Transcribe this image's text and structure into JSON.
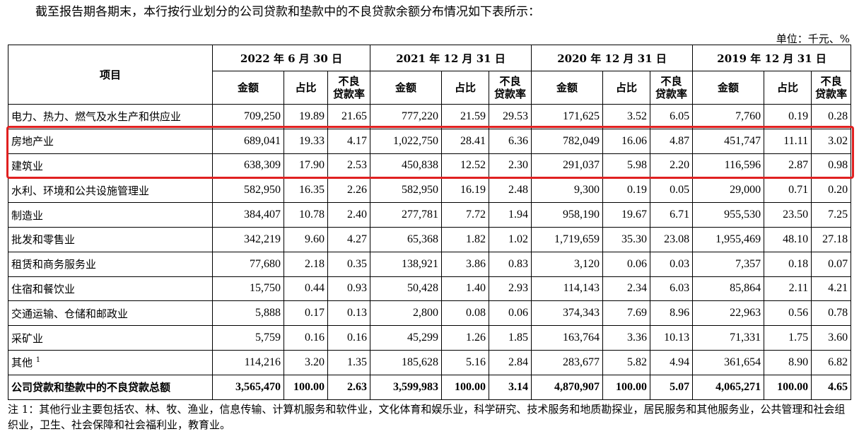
{
  "intro": "截至报告期各期末，本行按行业划分的公司贷款和垫款中的不良贷款余额分布情况如下表所示：",
  "unit": "单位：千元、%",
  "table": {
    "item_header": "项目",
    "periods": [
      "2022 年 6 月 30 日",
      "2021 年 12 月 31 日",
      "2020 年 12 月 31 日",
      "2019 年 12 月 31 日"
    ],
    "sub_headers": {
      "amount": "金额",
      "share": "占比",
      "npl_rate_1": "不良",
      "npl_rate_2": "贷款率"
    },
    "rows": [
      {
        "name": "电力、热力、燃气及水生产和供应业",
        "v": [
          "709,250",
          "19.89",
          "21.65",
          "777,220",
          "21.59",
          "29.53",
          "171,625",
          "3.52",
          "6.05",
          "7,760",
          "0.19",
          "0.28"
        ]
      },
      {
        "name": "房地产业",
        "v": [
          "689,041",
          "19.33",
          "4.17",
          "1,022,750",
          "28.41",
          "6.36",
          "782,049",
          "16.06",
          "4.87",
          "451,747",
          "11.11",
          "3.02"
        ]
      },
      {
        "name": "建筑业",
        "v": [
          "638,309",
          "17.90",
          "2.53",
          "450,838",
          "12.52",
          "2.30",
          "291,037",
          "5.98",
          "2.20",
          "116,596",
          "2.87",
          "0.98"
        ]
      },
      {
        "name": "水利、环境和公共设施管理业",
        "v": [
          "582,950",
          "16.35",
          "2.26",
          "582,950",
          "16.19",
          "2.48",
          "9,300",
          "0.19",
          "0.05",
          "29,000",
          "0.71",
          "0.20"
        ]
      },
      {
        "name": "制造业",
        "v": [
          "384,407",
          "10.78",
          "2.40",
          "277,781",
          "7.72",
          "1.94",
          "958,190",
          "19.67",
          "6.71",
          "955,530",
          "23.50",
          "7.25"
        ]
      },
      {
        "name": "批发和零售业",
        "v": [
          "342,219",
          "9.60",
          "4.27",
          "65,368",
          "1.82",
          "1.02",
          "1,719,659",
          "35.30",
          "23.08",
          "1,955,469",
          "48.10",
          "27.18"
        ]
      },
      {
        "name": "租赁和商务服务业",
        "v": [
          "77,680",
          "2.18",
          "0.35",
          "138,921",
          "3.86",
          "0.83",
          "3,120",
          "0.06",
          "0.03",
          "7,357",
          "0.18",
          "0.07"
        ]
      },
      {
        "name": "住宿和餐饮业",
        "v": [
          "15,750",
          "0.44",
          "0.93",
          "50,428",
          "1.40",
          "2.93",
          "114,143",
          "2.34",
          "6.03",
          "85,864",
          "2.11",
          "4.21"
        ]
      },
      {
        "name": "交通运输、仓储和邮政业",
        "v": [
          "5,888",
          "0.17",
          "0.13",
          "2,800",
          "0.08",
          "0.06",
          "374,343",
          "7.69",
          "8.96",
          "22,963",
          "0.56",
          "0.78"
        ]
      },
      {
        "name": "采矿业",
        "v": [
          "5,759",
          "0.16",
          "0.16",
          "45,299",
          "1.26",
          "1.85",
          "163,764",
          "3.36",
          "10.13",
          "71,331",
          "1.75",
          "3.60"
        ]
      },
      {
        "name": "其他",
        "sup": "1",
        "v": [
          "114,216",
          "3.20",
          "1.35",
          "185,628",
          "5.16",
          "2.84",
          "283,677",
          "5.82",
          "4.94",
          "361,654",
          "8.90",
          "6.82"
        ]
      }
    ],
    "total": {
      "name": "公司贷款和垫款中的不良贷款总额",
      "v": [
        "3,565,470",
        "100.00",
        "2.63",
        "3,599,983",
        "100.00",
        "3.14",
        "4,870,907",
        "100.00",
        "5.07",
        "4,065,271",
        "100.00",
        "4.65"
      ]
    }
  },
  "note": "注 1：其他行业主要包括农、林、牧、渔业，信息传输、计算机服务和软件业，文化体育和娱乐业，科学研究、技术服务和地质勘探业，居民服务和其他服务业，公共管理和社会组织业，卫生、社会保障和社会福利业，教育业。",
  "colors": {
    "highlight_border": "#e02020"
  }
}
